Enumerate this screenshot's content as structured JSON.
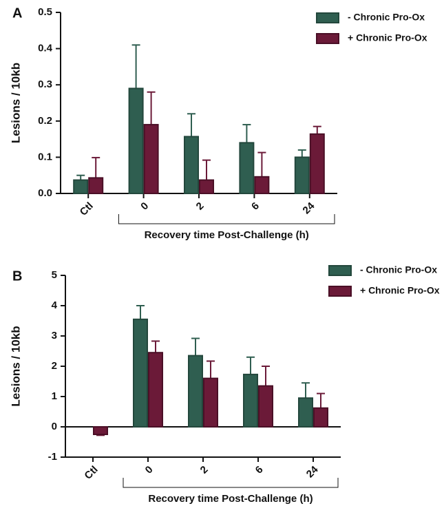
{
  "chart_data": [
    {
      "type": "bar",
      "panel_label": "A",
      "ylabel": "Lesions / 10kb",
      "xlabel": "Recovery time Post-Challenge (h)",
      "categories": [
        "Ctl",
        "0",
        "2",
        "6",
        "24"
      ],
      "series": [
        {
          "name": "- Chronic Pro-Ox",
          "color": "#2f5e50",
          "values": [
            0.037,
            0.29,
            0.157,
            0.14,
            0.1
          ],
          "errors": [
            0.013,
            0.12,
            0.063,
            0.05,
            0.02
          ]
        },
        {
          "name": "+ Chronic Pro-Ox",
          "color": "#6b1a38",
          "values": [
            0.043,
            0.19,
            0.037,
            0.046,
            0.164
          ],
          "errors": [
            0.056,
            0.09,
            0.055,
            0.067,
            0.021
          ]
        }
      ],
      "ylim": [
        0,
        0.5
      ],
      "yticks": [
        {
          "value": 0,
          "label": "0.0"
        },
        0.1,
        0.2,
        0.3,
        0.4,
        0.5
      ],
      "legend": "top-right"
    },
    {
      "type": "bar",
      "panel_label": "B",
      "ylabel": "Lesions / 10kb",
      "xlabel": "Recovery time Post-Challenge (h)",
      "categories": [
        "Ctl",
        "0",
        "2",
        "6",
        "24"
      ],
      "series": [
        {
          "name": "- Chronic Pro-Ox",
          "color": "#2f5e50",
          "values": [
            null,
            3.55,
            2.35,
            1.73,
            0.95
          ],
          "errors": [
            null,
            0.45,
            0.57,
            0.57,
            0.5
          ]
        },
        {
          "name": "+ Chronic Pro-Ox",
          "color": "#6b1a38",
          "values": [
            -0.25,
            2.45,
            1.6,
            1.35,
            0.62
          ],
          "errors": [
            0.03,
            0.38,
            0.57,
            0.65,
            0.48
          ]
        }
      ],
      "ylim": [
        -1,
        5
      ],
      "yticks": [
        -1,
        0,
        1,
        2,
        3,
        4,
        5
      ],
      "legend": "top-right"
    }
  ]
}
